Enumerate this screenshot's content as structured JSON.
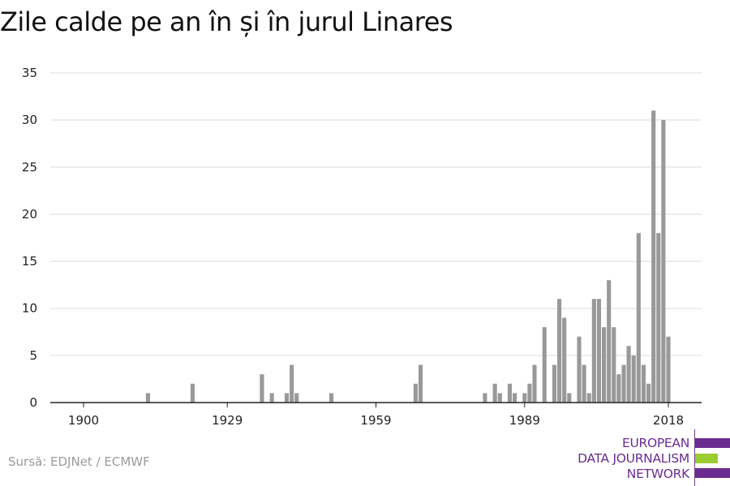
{
  "title": "Zile calde pe an în și în jurul Linares",
  "source": "Sursă: EDJNet / ECMWF",
  "logo": {
    "line1": "EUROPEAN",
    "line2": "DATA JOURNALISM",
    "line3": "NETWORK",
    "colors": {
      "purple": "#6b2c91",
      "green": "#9acd32"
    }
  },
  "colors": {
    "bar": "#999999",
    "grid": "#dddddd",
    "axis": "#222222"
  },
  "chart_data": {
    "type": "bar",
    "title": "Zile calde pe an în și în jurul Linares",
    "xlabel": "",
    "ylabel": "",
    "xlim": [
      1900,
      2018
    ],
    "ylim": [
      0,
      35
    ],
    "x_ticks": [
      1900,
      1929,
      1959,
      1989,
      2018
    ],
    "y_ticks": [
      0,
      5,
      10,
      15,
      20,
      25,
      30,
      35
    ],
    "grid": true,
    "x": [
      1913,
      1922,
      1936,
      1938,
      1941,
      1942,
      1943,
      1950,
      1967,
      1968,
      1981,
      1983,
      1984,
      1986,
      1987,
      1989,
      1990,
      1991,
      1993,
      1995,
      1996,
      1997,
      1998,
      2000,
      2001,
      2002,
      2003,
      2004,
      2005,
      2006,
      2007,
      2008,
      2009,
      2010,
      2011,
      2012,
      2013,
      2014,
      2015,
      2016,
      2017,
      2018
    ],
    "values": [
      1,
      2,
      3,
      1,
      1,
      4,
      1,
      1,
      2,
      4,
      1,
      2,
      1,
      2,
      1,
      1,
      2,
      4,
      8,
      4,
      11,
      9,
      1,
      7,
      4,
      1,
      11,
      11,
      8,
      13,
      8,
      3,
      4,
      6,
      5,
      18,
      4,
      2,
      31,
      18,
      30,
      7
    ]
  }
}
